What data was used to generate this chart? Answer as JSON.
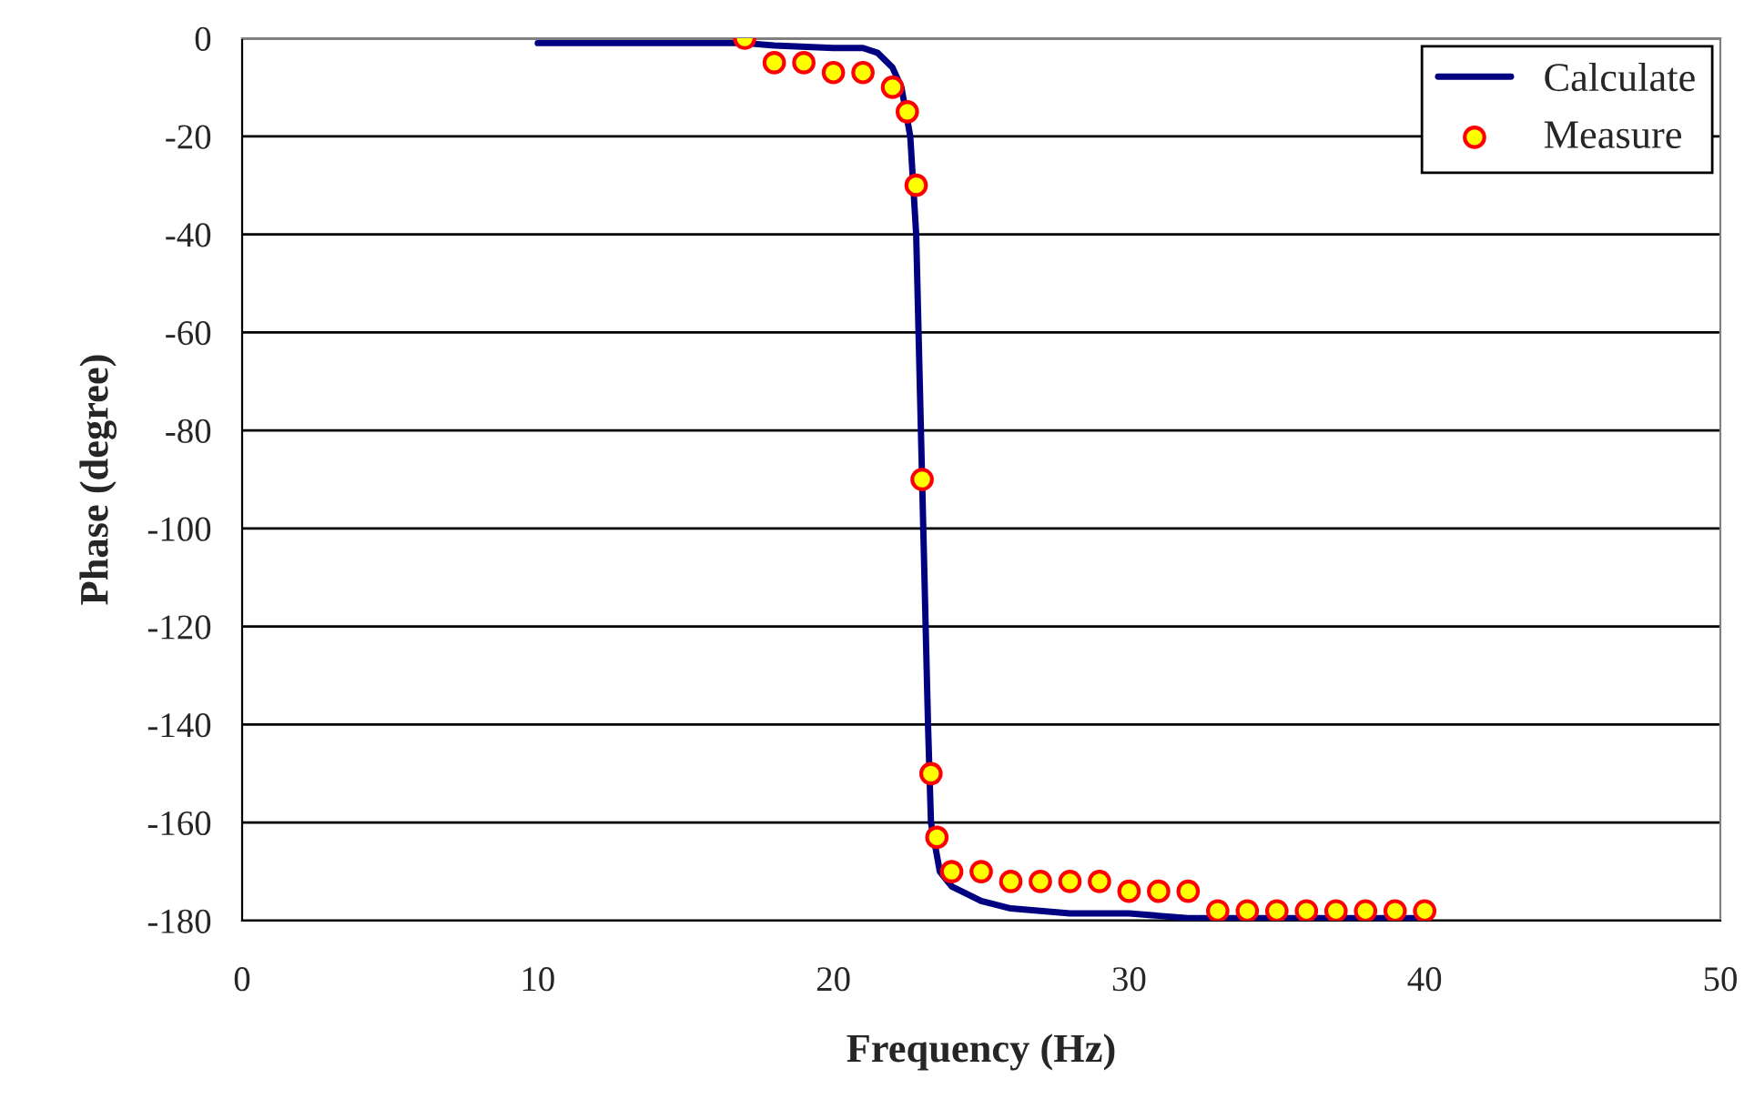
{
  "chart_data": {
    "type": "line",
    "xlabel": "Frequency (Hz)",
    "ylabel": "Phase (degree)",
    "xlim": [
      0,
      50
    ],
    "xticks": [
      0,
      10,
      20,
      30,
      40,
      50
    ],
    "ylim": [
      -180,
      0
    ],
    "yticks": [
      -180,
      -160,
      -140,
      -120,
      -100,
      -80,
      -60,
      -40,
      -20,
      0
    ],
    "grid": "y",
    "legend": "top right",
    "series": [
      {
        "name": "Calculate",
        "color": "#000080",
        "marker": "none",
        "line_style": "solid",
        "x": [
          10,
          15,
          17,
          18,
          20,
          21,
          21.5,
          22,
          22.3,
          22.6,
          22.8,
          23.2,
          23.3,
          23.6,
          24,
          25,
          26,
          27,
          28,
          30,
          31,
          32,
          35,
          40
        ],
        "values": [
          -1,
          -1,
          -1,
          -1.5,
          -2,
          -2,
          -3,
          -6,
          -10,
          -20,
          -40,
          -140,
          -160,
          -170,
          -173,
          -176,
          -177.5,
          -178,
          -178.5,
          -178.5,
          -179,
          -179.5,
          -179.5,
          -179.5
        ]
      },
      {
        "name": "Measure",
        "type": "scatter",
        "color": "#ffff00",
        "marker": "circle",
        "x": [
          17,
          18,
          19,
          20,
          21,
          22,
          22.5,
          22.8,
          23,
          23.3,
          23.5,
          24,
          25,
          26,
          27,
          28,
          29,
          30,
          31,
          32,
          33,
          34,
          35,
          36,
          37,
          38,
          39,
          40
        ],
        "values": [
          0,
          -5,
          -5,
          -7,
          -7,
          -10,
          -15,
          -30,
          -90,
          -150,
          -163,
          -170,
          -170,
          -172,
          -172,
          -172,
          -172,
          -174,
          -174,
          -174,
          -178,
          -178,
          -178,
          -178,
          -178,
          -178,
          -178,
          -178
        ]
      }
    ]
  }
}
